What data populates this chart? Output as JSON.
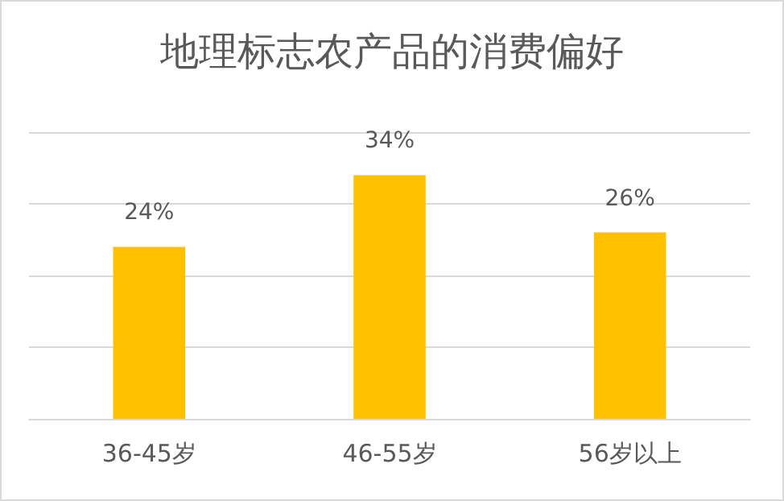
{
  "chart_data": {
    "type": "bar",
    "title": "地理标志农产品的消费偏好",
    "categories": [
      "36-45岁",
      "46-55岁",
      "56岁以上"
    ],
    "values": [
      24,
      34,
      26
    ],
    "color": "#ffc000",
    "value_labels": [
      "24%",
      "34%",
      "26%"
    ],
    "ylim": [
      0,
      40
    ],
    "yticks": [
      0,
      10,
      20,
      30,
      40
    ],
    "grid": "y",
    "tick_labels": "x"
  }
}
